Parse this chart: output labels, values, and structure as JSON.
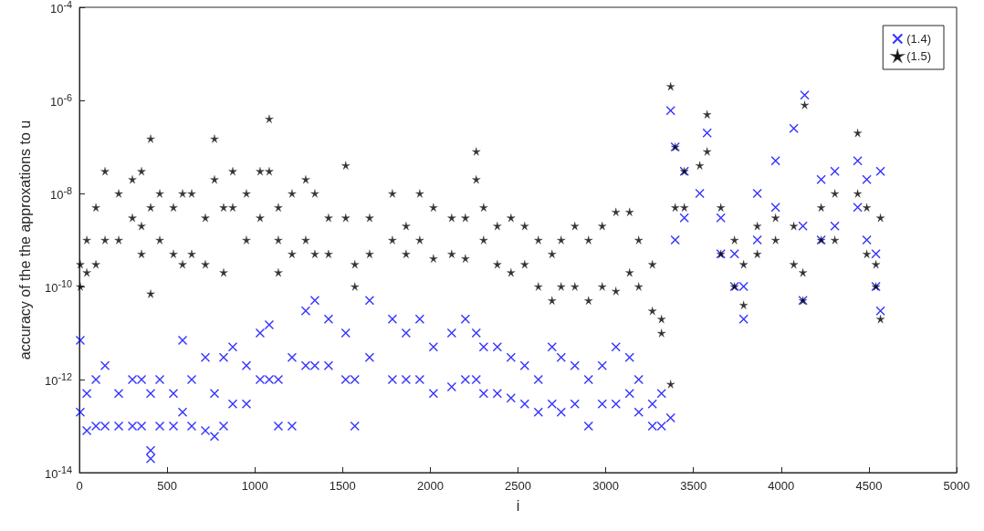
{
  "chart_data": {
    "type": "scatter",
    "xlabel": "i",
    "ylabel": "accuracy of the the approxations to u",
    "log": "y",
    "grid": false,
    "legend": "top right",
    "xlim": [
      0,
      5000
    ],
    "xticks": [
      0,
      500,
      1000,
      1500,
      2000,
      2500,
      3000,
      3500,
      4000,
      4500,
      5000
    ],
    "ylim": [
      1e-14,
      0.0001
    ],
    "yticks": [
      {
        "value": 1e-14,
        "label": "10$^{-14}$"
      },
      {
        "value": 1e-12,
        "label": "10$^{-12}$"
      },
      {
        "value": 1e-10,
        "label": "10$^{-10}$"
      },
      {
        "value": 1e-08,
        "label": "10$^{-8}$"
      },
      {
        "value": 1e-06,
        "label": "10$^{-6}$"
      },
      {
        "value": 0.0001,
        "label": "10$^{-4}$"
      }
    ],
    "series": [
      {
        "name": "(1.4)",
        "color": "#0000ff",
        "marker": "cross",
        "x": [
          5,
          5,
          42,
          42,
          94,
          94,
          146,
          146,
          224,
          224,
          302,
          302,
          354,
          354,
          406,
          406,
          406,
          458,
          458,
          536,
          536,
          588,
          588,
          640,
          640,
          718,
          718,
          770,
          770,
          822,
          822,
          874,
          874,
          952,
          952,
          1030,
          1030,
          1082,
          1082,
          1134,
          1134,
          1212,
          1212,
          1290,
          1290,
          1342,
          1342,
          1420,
          1420,
          1518,
          1518,
          1570,
          1570,
          1654,
          1654,
          1784,
          1784,
          1862,
          1862,
          1940,
          1940,
          2018,
          2018,
          2122,
          2122,
          2200,
          2200,
          2262,
          2262,
          2304,
          2304,
          2382,
          2382,
          2460,
          2460,
          2538,
          2538,
          2616,
          2616,
          2694,
          2694,
          2746,
          2746,
          2824,
          2824,
          2902,
          2902,
          2980,
          2980,
          3058,
          3058,
          3136,
          3136,
          3188,
          3188,
          3266,
          3266,
          3318,
          3318,
          3370,
          3370,
          3396,
          3396,
          3448,
          3448,
          3536,
          3578,
          3656,
          3656,
          3734,
          3734,
          3786,
          3786,
          3864,
          3864,
          3968,
          3968,
          4072,
          4134,
          4124,
          4124,
          4228,
          4228,
          4306,
          4306,
          4436,
          4436,
          4488,
          4488,
          4540,
          4540,
          4566,
          4566
        ],
        "values": [
          7e-12,
          2e-13,
          5e-13,
          8e-14,
          1e-12,
          1e-13,
          2e-12,
          1e-13,
          5e-13,
          1e-13,
          1e-12,
          1e-13,
          1e-12,
          1e-13,
          3e-14,
          2e-14,
          5e-13,
          1e-12,
          1e-13,
          5e-13,
          1e-13,
          7e-12,
          2e-13,
          1e-12,
          1e-13,
          3e-12,
          8e-14,
          5e-13,
          6e-14,
          3e-12,
          1e-13,
          5e-12,
          3e-13,
          2e-12,
          3e-13,
          1e-11,
          1e-12,
          1.5e-11,
          1e-12,
          1e-12,
          1e-13,
          3e-12,
          1e-13,
          3e-11,
          2e-12,
          5e-11,
          2e-12,
          2e-11,
          2e-12,
          1e-11,
          1e-12,
          1e-12,
          1e-13,
          5e-11,
          3e-12,
          2e-11,
          1e-12,
          1e-11,
          1e-12,
          2e-11,
          1e-12,
          5e-12,
          5e-13,
          1e-11,
          7e-13,
          2e-11,
          1e-12,
          1e-11,
          1e-12,
          5e-12,
          5e-13,
          5e-12,
          5e-13,
          3e-12,
          4e-13,
          2e-12,
          3e-13,
          1e-12,
          2e-13,
          5e-12,
          3e-13,
          3e-12,
          2e-13,
          2e-12,
          3e-13,
          1e-12,
          1e-13,
          2e-12,
          3e-13,
          5e-12,
          3e-13,
          3e-12,
          5e-13,
          1e-12,
          2e-13,
          3e-13,
          1e-13,
          5e-13,
          1e-13,
          6e-07,
          1.5e-13,
          1e-07,
          1e-09,
          3e-08,
          3e-09,
          1e-08,
          2e-07,
          3e-09,
          5e-10,
          5e-10,
          1e-10,
          2e-11,
          1e-10,
          1e-08,
          1e-09,
          5e-08,
          5e-09,
          2.5e-07,
          1.3e-06,
          2e-09,
          5e-11,
          2e-08,
          1e-09,
          3e-08,
          2e-09,
          5e-08,
          5e-09,
          2e-08,
          1e-09,
          5e-10,
          1e-10,
          3e-08,
          3e-11
        ]
      },
      {
        "name": "(1.5)",
        "color": "#000000",
        "marker": "star",
        "x": [
          5,
          5,
          42,
          42,
          94,
          94,
          146,
          146,
          224,
          224,
          302,
          302,
          354,
          354,
          354,
          406,
          406,
          406,
          458,
          458,
          536,
          536,
          588,
          588,
          640,
          640,
          718,
          718,
          770,
          770,
          822,
          822,
          874,
          874,
          952,
          952,
          1030,
          1030,
          1082,
          1082,
          1134,
          1134,
          1134,
          1212,
          1212,
          1290,
          1290,
          1342,
          1342,
          1420,
          1420,
          1518,
          1518,
          1570,
          1570,
          1654,
          1654,
          1784,
          1784,
          1862,
          1862,
          1940,
          1940,
          2018,
          2018,
          2122,
          2122,
          2200,
          2200,
          2262,
          2262,
          2304,
          2304,
          2382,
          2382,
          2460,
          2460,
          2538,
          2538,
          2616,
          2616,
          2694,
          2694,
          2746,
          2746,
          2824,
          2824,
          2902,
          2902,
          2980,
          2980,
          3058,
          3058,
          3136,
          3136,
          3188,
          3188,
          3266,
          3266,
          3318,
          3318,
          3370,
          3370,
          3396,
          3396,
          3448,
          3448,
          3536,
          3578,
          3578,
          3656,
          3656,
          3734,
          3734,
          3786,
          3786,
          3864,
          3864,
          3968,
          3968,
          4072,
          4072,
          4124,
          4124,
          4134,
          4228,
          4228,
          4306,
          4306,
          4436,
          4436,
          4488,
          4488,
          4540,
          4540,
          4566,
          4566
        ],
        "values": [
          3e-10,
          1e-10,
          1e-09,
          2e-10,
          5e-09,
          3e-10,
          3e-08,
          1e-09,
          1e-08,
          1e-09,
          2e-08,
          3e-09,
          3e-08,
          2e-09,
          5e-10,
          1.5e-07,
          5e-09,
          7e-11,
          1e-08,
          1e-09,
          5e-09,
          5e-10,
          1e-08,
          3e-10,
          1e-08,
          5e-10,
          3e-09,
          3e-10,
          1.5e-07,
          2e-08,
          5e-09,
          2e-10,
          3e-08,
          5e-09,
          1e-08,
          1e-09,
          3e-08,
          3e-09,
          4e-07,
          3e-08,
          5e-09,
          1e-09,
          2e-10,
          1e-08,
          5e-10,
          2e-08,
          1e-09,
          1e-08,
          5e-10,
          3e-09,
          5e-10,
          4e-08,
          3e-09,
          3e-10,
          1e-10,
          3e-09,
          5e-10,
          1e-08,
          1e-09,
          2e-09,
          5e-10,
          1e-08,
          1e-09,
          5e-09,
          4e-10,
          3e-09,
          5e-10,
          3e-09,
          4e-10,
          8e-08,
          2e-08,
          5e-09,
          1e-09,
          2e-09,
          3e-10,
          3e-09,
          2e-10,
          2e-09,
          3e-10,
          1e-09,
          1e-10,
          5e-10,
          5e-11,
          1e-09,
          1e-10,
          2e-09,
          1e-10,
          1e-09,
          5e-11,
          2e-09,
          1e-10,
          4e-09,
          8e-11,
          4e-09,
          2e-10,
          1e-09,
          1e-10,
          3e-10,
          3e-11,
          2e-11,
          1e-11,
          2e-06,
          8e-13,
          1e-07,
          5e-09,
          3e-08,
          5e-09,
          4e-08,
          5e-07,
          8e-08,
          5e-09,
          5e-10,
          1e-09,
          1e-10,
          3e-10,
          4e-11,
          2e-09,
          5e-10,
          3e-09,
          1e-09,
          2e-09,
          3e-10,
          2e-10,
          5e-11,
          8e-07,
          5e-09,
          1e-09,
          1e-08,
          1e-09,
          2e-07,
          1e-08,
          5e-09,
          5e-10,
          3e-10,
          1e-10,
          2e-11,
          3e-09
        ]
      }
    ]
  }
}
